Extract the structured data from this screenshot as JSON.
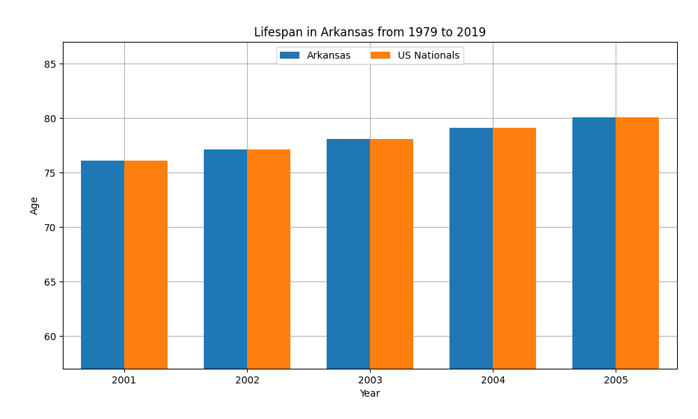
{
  "chart_data": {
    "type": "bar",
    "title": "Lifespan in Arkansas from 1979 to 2019",
    "x_label": "Year",
    "y_label": "Age",
    "categories": [
      "2001",
      "2002",
      "2003",
      "2004",
      "2005"
    ],
    "series": [
      {
        "name": "Arkansas",
        "values": [
          76.1,
          77.1,
          78.1,
          79.1,
          80.1
        ]
      },
      {
        "name": "US Nationals",
        "values": [
          76.1,
          77.1,
          78.1,
          79.1,
          80.1
        ]
      }
    ],
    "ylim": [
      57,
      87
    ],
    "yticks": [
      60,
      65,
      70,
      75,
      80,
      85
    ],
    "grid": true,
    "legend": "upper center"
  }
}
